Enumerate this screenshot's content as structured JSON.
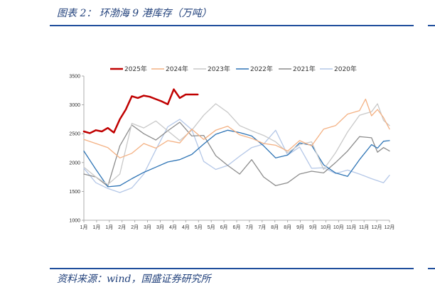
{
  "figure": {
    "title": "图表 2： 环渤海 9 港库存（万吨）",
    "source": "资料来源：wind，国盛证券研究所"
  },
  "colors": {
    "rule": "#1f4e9c",
    "text": "#1f3f7a"
  },
  "chart_data": {
    "type": "line",
    "title": "",
    "xlabel": "",
    "ylabel": "",
    "ylim": [
      1000,
      3500
    ],
    "yticks": [
      1000,
      1500,
      2000,
      2500,
      3000,
      3500
    ],
    "xtick_labels": [
      "1月",
      "1月",
      "1月",
      "2月",
      "2月",
      "3月",
      "3月",
      "4月",
      "4月",
      "5月",
      "5月",
      "6月",
      "6月",
      "7月",
      "7月",
      "8月",
      "8月",
      "9月",
      "9月",
      "10月",
      "10月",
      "11月",
      "11月",
      "12月",
      "12月"
    ],
    "grid": false,
    "legend_position": "top",
    "x_unit": "week-of-year",
    "x_range": [
      1,
      52
    ],
    "series": [
      {
        "name": "2025年",
        "color": "#c00000",
        "width": 2.5,
        "x": [
          1,
          2,
          3,
          4,
          5,
          6,
          7,
          8,
          9,
          10,
          11,
          12,
          13,
          14,
          15,
          16,
          17,
          18,
          19,
          20
        ],
        "values": [
          2540,
          2510,
          2560,
          2540,
          2600,
          2520,
          2750,
          2920,
          3150,
          3120,
          3160,
          3140,
          3100,
          3060,
          3010,
          3270,
          3120,
          3180,
          3180,
          3180
        ]
      },
      {
        "name": "2024年",
        "color": "#f4b183",
        "width": 1.3,
        "x": [
          1,
          3,
          5,
          7,
          9,
          11,
          13,
          15,
          17,
          19,
          21,
          23,
          25,
          27,
          29,
          31,
          33,
          35,
          37,
          39,
          41,
          43,
          45,
          47,
          48,
          49,
          50,
          51,
          52
        ],
        "values": [
          2400,
          2330,
          2260,
          2080,
          2160,
          2330,
          2250,
          2380,
          2340,
          2580,
          2400,
          2560,
          2630,
          2480,
          2420,
          2330,
          2300,
          2200,
          2380,
          2290,
          2580,
          2640,
          2840,
          2900,
          3100,
          2810,
          2920,
          2780,
          2580
        ]
      },
      {
        "name": "2023年",
        "color": "#c9c9c9",
        "width": 1.3,
        "x": [
          1,
          3,
          5,
          7,
          9,
          11,
          13,
          15,
          17,
          19,
          21,
          23,
          25,
          27,
          29,
          31,
          33,
          35,
          37,
          39,
          41,
          43,
          45,
          47,
          49,
          50,
          51,
          52
        ],
        "values": [
          1920,
          1750,
          1620,
          1800,
          2680,
          2600,
          2720,
          2550,
          2380,
          2560,
          2820,
          3020,
          2870,
          2640,
          2550,
          2470,
          2360,
          2170,
          2310,
          2360,
          1880,
          2170,
          2530,
          2820,
          2880,
          3020,
          2730,
          2640
        ]
      },
      {
        "name": "2022年",
        "color": "#2e74b5",
        "width": 1.3,
        "x": [
          1,
          3,
          5,
          7,
          9,
          11,
          13,
          15,
          17,
          19,
          21,
          23,
          25,
          27,
          29,
          31,
          33,
          35,
          37,
          39,
          41,
          43,
          45,
          47,
          49,
          50,
          51,
          52
        ],
        "values": [
          2200,
          1880,
          1580,
          1600,
          1720,
          1830,
          1920,
          2010,
          2050,
          2140,
          2320,
          2490,
          2560,
          2520,
          2460,
          2290,
          2080,
          2130,
          2340,
          2300,
          1960,
          1820,
          1760,
          2050,
          2310,
          2250,
          2370,
          2380
        ]
      },
      {
        "name": "2021年",
        "color": "#8c8c8c",
        "width": 1.3,
        "x": [
          1,
          3,
          5,
          7,
          9,
          11,
          13,
          15,
          17,
          19,
          21,
          23,
          25,
          27,
          29,
          31,
          33,
          35,
          37,
          39,
          41,
          43,
          45,
          47,
          49,
          50,
          51,
          52
        ],
        "values": [
          1800,
          1750,
          1590,
          2290,
          2650,
          2500,
          2390,
          2550,
          2700,
          2460,
          2470,
          2120,
          1950,
          1800,
          2050,
          1750,
          1600,
          1650,
          1800,
          1850,
          1820,
          2000,
          2200,
          2450,
          2430,
          2180,
          2260,
          2200
        ]
      },
      {
        "name": "2020年",
        "color": "#b4c7e7",
        "width": 1.3,
        "x": [
          1,
          3,
          5,
          7,
          9,
          11,
          13,
          15,
          17,
          19,
          21,
          23,
          25,
          27,
          29,
          31,
          33,
          35,
          37,
          39,
          41,
          43,
          45,
          47,
          49,
          51,
          52
        ],
        "values": [
          1900,
          1650,
          1550,
          1480,
          1560,
          1800,
          2220,
          2620,
          2750,
          2570,
          2020,
          1880,
          1950,
          2110,
          2260,
          2320,
          2560,
          2130,
          2270,
          1900,
          1910,
          1810,
          1870,
          1800,
          1720,
          1650,
          1780
        ]
      }
    ]
  }
}
